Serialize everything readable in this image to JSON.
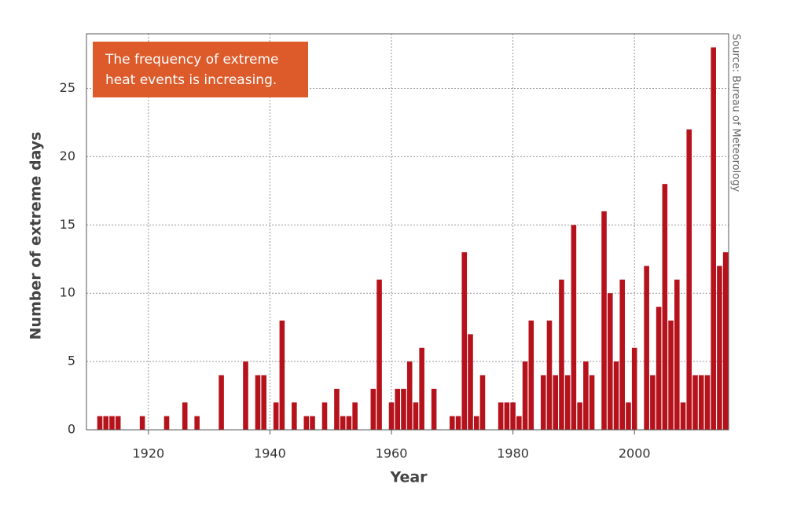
{
  "chart_data": {
    "type": "bar",
    "annotation": [
      "The frequency of extreme",
      "heat events is increasing."
    ],
    "source": "Source: Bureau of Meteorology",
    "x_label": "Year",
    "y_label": "Number of extreme days",
    "x": [
      1912,
      1913,
      1914,
      1915,
      1919,
      1923,
      1926,
      1928,
      1932,
      1936,
      1938,
      1939,
      1941,
      1942,
      1944,
      1946,
      1947,
      1949,
      1951,
      1952,
      1953,
      1954,
      1957,
      1958,
      1960,
      1961,
      1962,
      1963,
      1964,
      1965,
      1967,
      1970,
      1971,
      1972,
      1973,
      1974,
      1975,
      1978,
      1979,
      1980,
      1981,
      1982,
      1983,
      1985,
      1986,
      1987,
      1988,
      1989,
      1990,
      1991,
      1992,
      1993,
      1995,
      1996,
      1997,
      1998,
      1999,
      2000,
      2002,
      2003,
      2004,
      2005,
      2006,
      2007,
      2008,
      2009,
      2010,
      2011,
      2012,
      2013,
      2014,
      2015
    ],
    "values": [
      1,
      1,
      1,
      1,
      1,
      1,
      2,
      1,
      4,
      5,
      4,
      4,
      2,
      8,
      2,
      1,
      1,
      2,
      3,
      1,
      1,
      2,
      3,
      11,
      2,
      3,
      3,
      5,
      2,
      6,
      3,
      1,
      1,
      13,
      7,
      1,
      4,
      2,
      2,
      2,
      1,
      5,
      8,
      4,
      8,
      4,
      11,
      4,
      15,
      2,
      5,
      4,
      16,
      10,
      5,
      11,
      2,
      6,
      12,
      4,
      9,
      18,
      8,
      11,
      2,
      22,
      4,
      4,
      4,
      28,
      12,
      13
    ],
    "color": "#b5121b",
    "annotation_color": "#dd5a2a",
    "xlim": [
      1909.8,
      2015.5
    ],
    "ylim": [
      0,
      29
    ],
    "xticks": [
      1920,
      1940,
      1960,
      1980,
      2000
    ],
    "yticks": [
      0,
      5,
      10,
      15,
      20,
      25
    ],
    "grid": true
  }
}
